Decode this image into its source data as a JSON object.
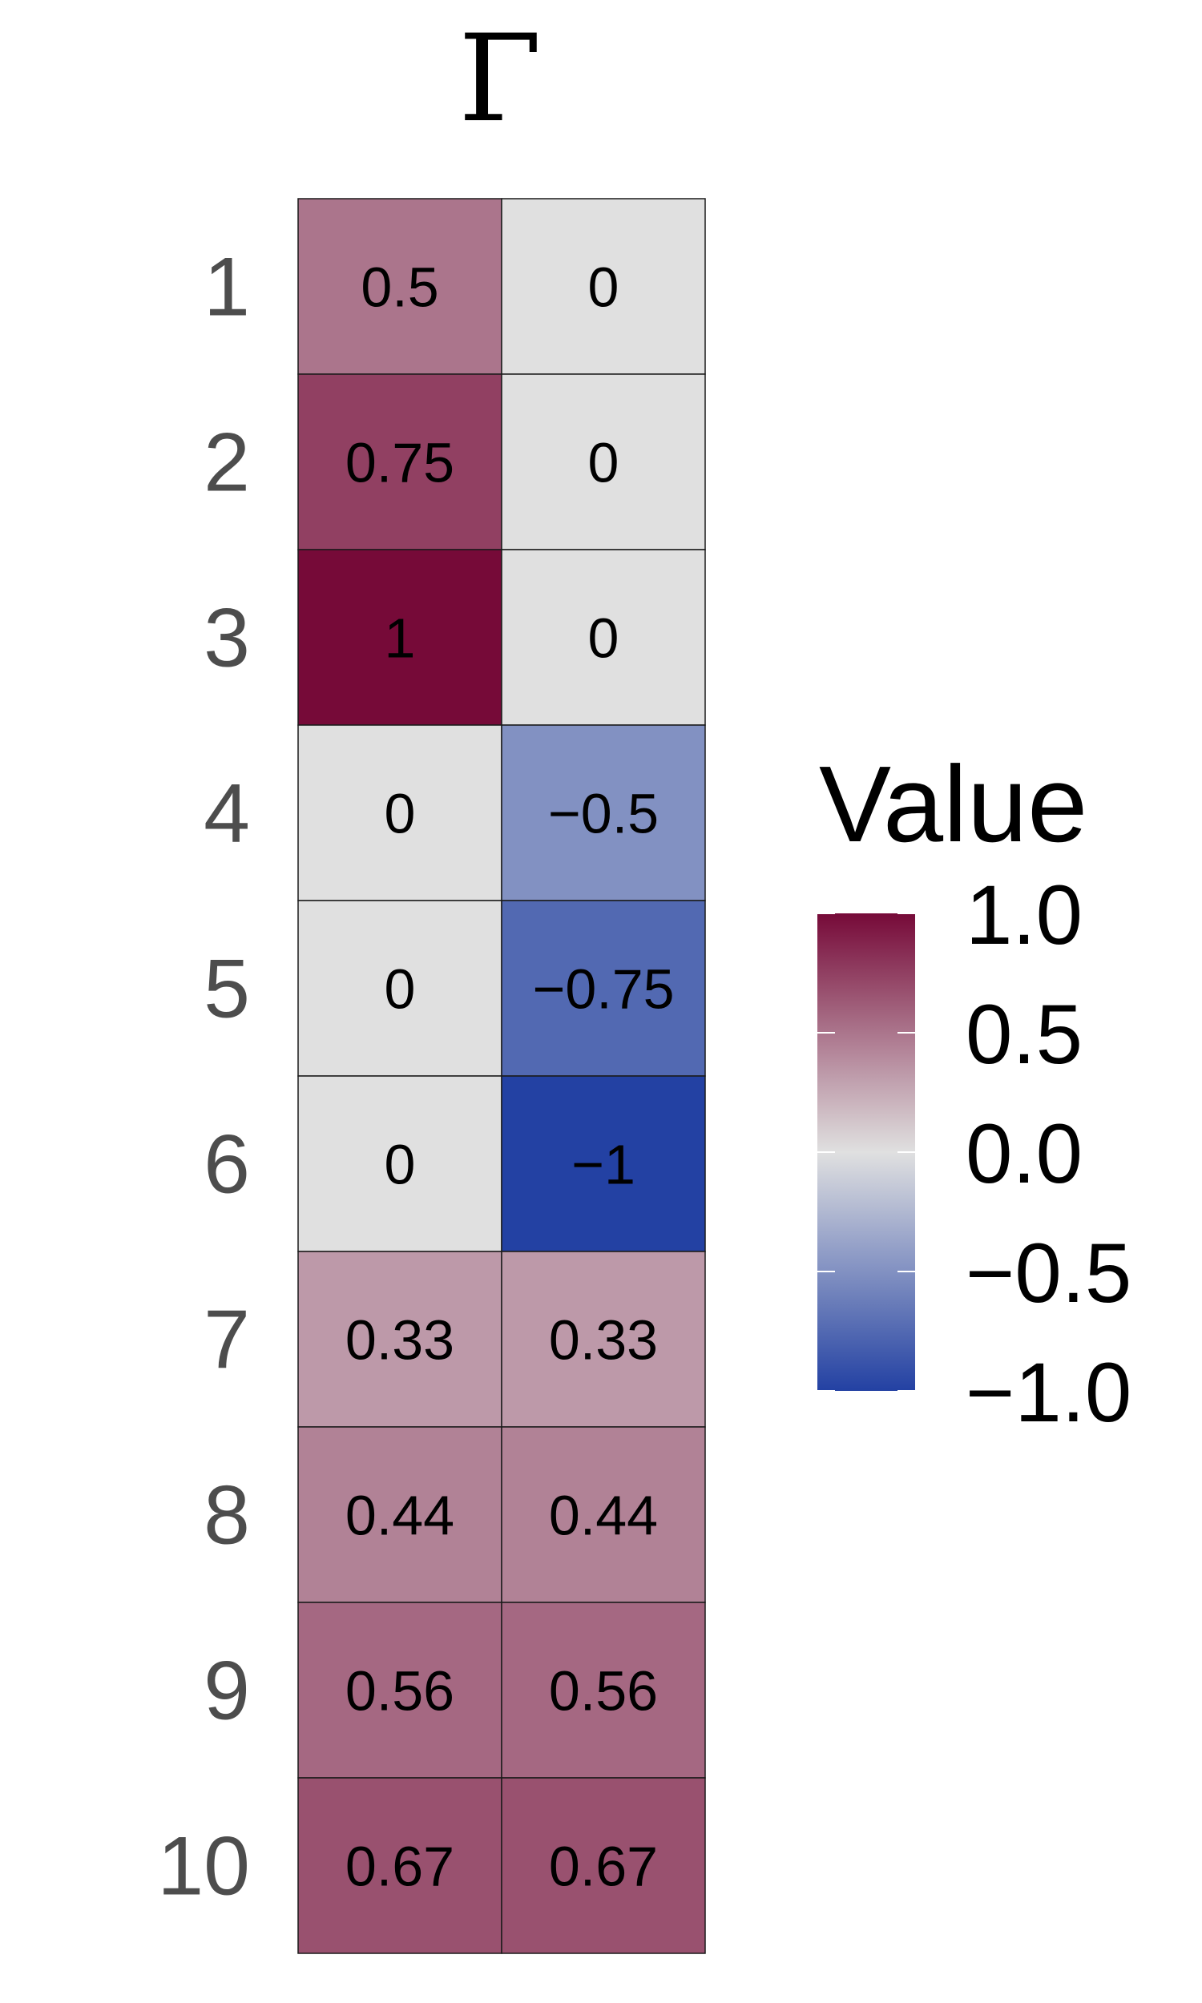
{
  "chart_data": {
    "type": "heatmap",
    "title": "Γ",
    "rows": [
      "1",
      "2",
      "3",
      "4",
      "5",
      "6",
      "7",
      "8",
      "9",
      "10"
    ],
    "columns": [
      "",
      ""
    ],
    "values": [
      [
        0.5,
        0
      ],
      [
        0.75,
        0
      ],
      [
        1,
        0
      ],
      [
        0,
        -0.5
      ],
      [
        0,
        -0.75
      ],
      [
        0,
        -1
      ],
      [
        0.33,
        0.33
      ],
      [
        0.44,
        0.44
      ],
      [
        0.56,
        0.56
      ],
      [
        0.67,
        0.67
      ]
    ],
    "cell_labels": [
      [
        "0.5",
        "0"
      ],
      [
        "0.75",
        "0"
      ],
      [
        "1",
        "0"
      ],
      [
        "0",
        "−0.5"
      ],
      [
        "0",
        "−0.75"
      ],
      [
        "0",
        "−1"
      ],
      [
        "0.33",
        "0.33"
      ],
      [
        "0.44",
        "0.44"
      ],
      [
        "0.56",
        "0.56"
      ],
      [
        "0.67",
        "0.67"
      ]
    ],
    "legend": {
      "title": "Value",
      "placement": "right",
      "range": [
        -1,
        1
      ],
      "ticks": [
        1.0,
        0.5,
        0.0,
        -0.5,
        -1.0
      ],
      "tick_labels": [
        "1.0",
        "0.5",
        "0.0",
        "−0.5",
        "−1.0"
      ]
    },
    "colors": {
      "low": "#2341a3",
      "mid": "#e0e0e0",
      "high": "#760a38",
      "cell_border": "#1a1a1a",
      "row_label": "#4d4d4d",
      "text": "#000000"
    }
  }
}
